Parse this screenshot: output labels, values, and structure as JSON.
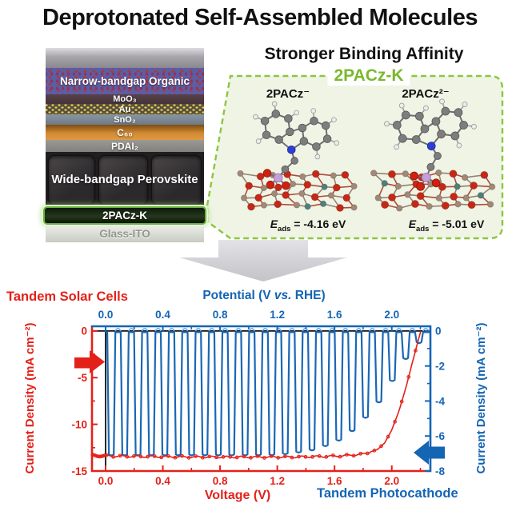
{
  "title": "Deprotonated Self-Assembled Molecules",
  "colors": {
    "red": "#e32119",
    "blue": "#1465b4",
    "green_label": "#7ab82e",
    "green_dash": "#8cc63f",
    "light_green_fill": "#eff4e5"
  },
  "device": {
    "layers": [
      {
        "name": "top-electrode",
        "label": ""
      },
      {
        "name": "narrow-bandgap-organic",
        "label": "Narrow-bandgap Organic"
      },
      {
        "name": "moo3",
        "label": "MoO₃"
      },
      {
        "name": "au",
        "label": "Au"
      },
      {
        "name": "sno2",
        "label": "SnO₂"
      },
      {
        "name": "c60",
        "label": "C₆₀"
      },
      {
        "name": "pdai2",
        "label": "PDAI₂"
      },
      {
        "name": "perovskite",
        "label": "Wide-bandgap Perovskite"
      },
      {
        "name": "pacz-k",
        "label": "2PACz-K"
      },
      {
        "name": "glass-ito",
        "label": "Glass-ITO"
      }
    ]
  },
  "binding": {
    "heading": "Stronger Binding Affinity",
    "group_label": "2PACz-K",
    "molecules": [
      {
        "label": "2PACz⁻",
        "eads_symbol": "E",
        "eads_sub": "ads",
        "eads_value": " = -4.16 eV"
      },
      {
        "label": "2PACz²⁻",
        "eads_symbol": "E",
        "eads_sub": "ads",
        "eads_value": " = -5.01 eV"
      }
    ]
  },
  "chart_data": {
    "type": "line",
    "corner_label_left": "Tandem Solar Cells",
    "corner_label_right": "Tandem Photocathode",
    "x_top": {
      "title_pre": "Potential (V ",
      "title_italic": "vs.",
      "title_post": " RHE)",
      "ticks": [
        "0.0",
        "0.4",
        "0.8",
        "1.2",
        "1.6",
        "2.0"
      ],
      "minor": [
        0.2,
        0.6,
        1.0,
        1.4,
        1.8,
        2.2
      ]
    },
    "x_bottom": {
      "title": "Voltage (V)",
      "ticks": [
        "0.0",
        "0.4",
        "0.8",
        "1.2",
        "1.6",
        "2.0"
      ],
      "minor": [
        0.2,
        0.6,
        1.0,
        1.4,
        1.8,
        2.2
      ]
    },
    "y_left": {
      "title": "Current Density (mA cm⁻²)",
      "ticks": [
        "0",
        "-5",
        "-10",
        "-15"
      ],
      "minor": [
        -2.5,
        -7.5,
        -12.5
      ],
      "range": [
        0.5,
        -15
      ]
    },
    "y_right": {
      "title": "Current Density (mA cm⁻²)",
      "ticks": [
        "0",
        "-2",
        "-4",
        "-6",
        "-8"
      ],
      "minor": [
        -1,
        -3,
        -5,
        -7
      ],
      "range": [
        0.27,
        -8
      ]
    },
    "x_range": [
      -0.095,
      2.27
    ],
    "reference_lines": {
      "zero_current_y": 0,
      "zero_voltage_x": 0
    },
    "series": [
      {
        "name": "tandem-solar-cell-jv",
        "axis": "left",
        "color": "#e32119",
        "marker": "circle",
        "points": [
          [
            -0.09,
            -13.35
          ],
          [
            0.1,
            -13.42
          ],
          [
            0.3,
            -13.45
          ],
          [
            0.5,
            -13.48
          ],
          [
            0.7,
            -13.5
          ],
          [
            0.9,
            -13.5
          ],
          [
            1.1,
            -13.5
          ],
          [
            1.3,
            -13.5
          ],
          [
            1.5,
            -13.45
          ],
          [
            1.65,
            -13.38
          ],
          [
            1.8,
            -13.2
          ],
          [
            1.9,
            -12.7
          ],
          [
            1.95,
            -12.0
          ],
          [
            2.0,
            -10.6
          ],
          [
            2.05,
            -8.6
          ],
          [
            2.1,
            -6.0
          ],
          [
            2.14,
            -3.6
          ],
          [
            2.18,
            -1.3
          ],
          [
            2.21,
            0.4
          ],
          [
            2.23,
            1.7
          ]
        ]
      },
      {
        "name": "tandem-photocathode-chopped",
        "axis": "right",
        "color": "#1a67b5",
        "cap_color": "#7db1e0",
        "chop": {
          "start": 0.012,
          "period": 0.0935,
          "duty": 0.6,
          "off_level": -0.07,
          "overshoot": 0.3
        },
        "envelope": [
          [
            0.0,
            -7.05
          ],
          [
            1.15,
            -7.05
          ],
          [
            1.3,
            -6.95
          ],
          [
            1.45,
            -6.75
          ],
          [
            1.6,
            -6.35
          ],
          [
            1.7,
            -5.85
          ],
          [
            1.8,
            -5.05
          ],
          [
            1.9,
            -4.15
          ],
          [
            2.0,
            -2.85
          ],
          [
            2.1,
            -1.5
          ],
          [
            2.18,
            -0.7
          ],
          [
            2.26,
            -0.2
          ]
        ]
      }
    ]
  }
}
